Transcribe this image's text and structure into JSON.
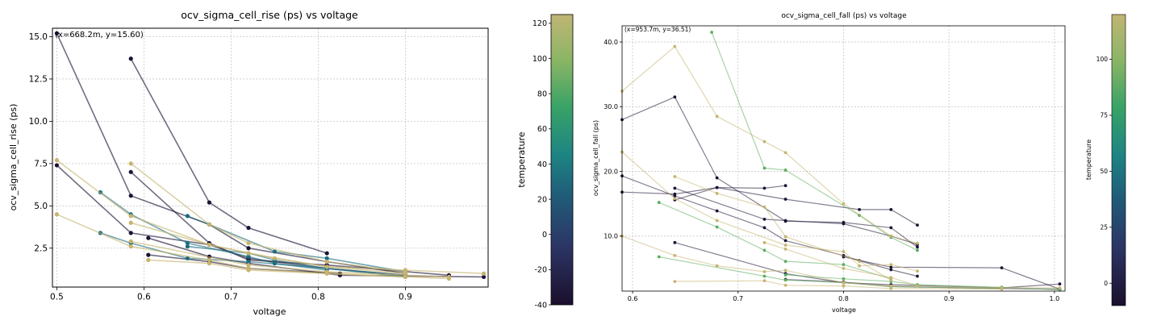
{
  "chart_data": [
    {
      "type": "line",
      "title": "ocv_sigma_cell_rise (ps) vs voltage",
      "xlabel": "voltage",
      "ylabel": "ocv_sigma_cell_rise (ps)",
      "xlim": [
        0.495,
        0.995
      ],
      "ylim": [
        0.2,
        15.5
      ],
      "x_ticks": [
        0.5,
        0.6,
        0.7,
        0.8,
        0.9
      ],
      "x_tick_labels": [
        "0.5",
        "0.6",
        "0.7",
        "0.8",
        "0.9"
      ],
      "y_ticks": [
        2.5,
        5.0,
        7.5,
        10.0,
        12.5,
        15.0
      ],
      "y_tick_labels": [
        "2.5",
        "5.0",
        "7.5",
        "10.0",
        "12.5",
        "15.0"
      ],
      "grid": true,
      "annotation": "(x=668.2m, y=15.60)",
      "colorbar": {
        "label": "temperature",
        "range": [
          -40,
          125
        ],
        "ticks": [
          -40,
          -20,
          0,
          20,
          40,
          60,
          80,
          100,
          120
        ],
        "tick_labels": [
          "-40",
          "-20",
          "0",
          "20",
          "40",
          "60",
          "80",
          "100",
          "120"
        ]
      },
      "series": [
        {
          "temperature": -40,
          "x": [
            0.5,
            0.585,
            0.675,
            0.72,
            0.81,
            0.9
          ],
          "y": [
            15.2,
            5.6,
            3.9,
            2.5,
            1.7,
            1.0
          ]
        },
        {
          "temperature": -40,
          "x": [
            0.585,
            0.675,
            0.72,
            0.81
          ],
          "y": [
            13.7,
            5.2,
            3.7,
            2.2
          ]
        },
        {
          "temperature": -40,
          "x": [
            0.5,
            0.585,
            0.675,
            0.72,
            0.81,
            0.9
          ],
          "y": [
            7.4,
            3.4,
            2.7,
            1.9,
            1.3,
            0.9
          ]
        },
        {
          "temperature": -40,
          "x": [
            0.585,
            0.675,
            0.72,
            0.81,
            0.95
          ],
          "y": [
            7.0,
            2.8,
            1.8,
            1.5,
            0.9
          ]
        },
        {
          "temperature": -40,
          "x": [
            0.605,
            0.675,
            0.72,
            0.825,
            0.99
          ],
          "y": [
            3.1,
            2.0,
            1.6,
            0.9,
            0.8
          ]
        },
        {
          "temperature": -40,
          "x": [
            0.605,
            0.675,
            0.72,
            0.825
          ],
          "y": [
            2.1,
            1.7,
            1.3,
            1.0
          ]
        },
        {
          "temperature": 25,
          "x": [
            0.55,
            0.585,
            0.65,
            0.72,
            0.75,
            0.81
          ],
          "y": [
            5.8,
            4.5,
            2.8,
            2.0,
            1.6,
            1.2
          ]
        },
        {
          "temperature": 25,
          "x": [
            0.55,
            0.585,
            0.65,
            0.72,
            0.81,
            0.9
          ],
          "y": [
            3.4,
            2.8,
            1.9,
            1.7,
            1.3,
            0.9
          ]
        },
        {
          "temperature": 25,
          "x": [
            0.65,
            0.675,
            0.75,
            0.81,
            0.9
          ],
          "y": [
            4.4,
            3.9,
            2.3,
            1.9,
            1.1
          ]
        },
        {
          "temperature": 25,
          "x": [
            0.65,
            0.72,
            0.75,
            0.81,
            0.9
          ],
          "y": [
            2.6,
            2.2,
            1.8,
            1.3,
            0.8
          ]
        },
        {
          "temperature": 125,
          "x": [
            0.5,
            0.585,
            0.675,
            0.72,
            0.81,
            0.9,
            0.99
          ],
          "y": [
            7.7,
            4.4,
            2.7,
            2.2,
            1.4,
            1.2,
            1.0
          ]
        },
        {
          "temperature": 125,
          "x": [
            0.585,
            0.675,
            0.72,
            0.81,
            0.9
          ],
          "y": [
            7.5,
            3.9,
            2.8,
            1.7,
            1.1
          ]
        },
        {
          "temperature": 125,
          "x": [
            0.5,
            0.585,
            0.675,
            0.72,
            0.81,
            0.95
          ],
          "y": [
            4.5,
            2.6,
            1.8,
            1.3,
            1.0,
            0.7
          ]
        },
        {
          "temperature": 125,
          "x": [
            0.585,
            0.675,
            0.75,
            0.81,
            0.9
          ],
          "y": [
            4.0,
            2.7,
            1.9,
            1.4,
            1.0
          ]
        },
        {
          "temperature": 125,
          "x": [
            0.605,
            0.675,
            0.72,
            0.81,
            0.9
          ],
          "y": [
            1.8,
            1.6,
            1.2,
            1.0,
            0.8
          ]
        },
        {
          "temperature": 125,
          "x": [
            0.585,
            0.72,
            0.81,
            0.95
          ],
          "y": [
            2.9,
            1.5,
            1.1,
            0.8
          ]
        }
      ]
    },
    {
      "type": "line",
      "title": "ocv_sigma_cell_fall (ps) vs voltage",
      "xlabel": "voltage",
      "ylabel": "ocv_sigma_cell_fall (ps)",
      "xlim": [
        0.59,
        1.01
      ],
      "ylim": [
        1.5,
        42.5
      ],
      "x_ticks": [
        0.6,
        0.7,
        0.8,
        0.9,
        1.0
      ],
      "x_tick_labels": [
        "0.6",
        "0.7",
        "0.8",
        "0.9",
        "1.0"
      ],
      "y_ticks": [
        10,
        20,
        30,
        40
      ],
      "y_tick_labels": [
        "10.0",
        "20.0",
        "30.0",
        "40.0"
      ],
      "grid": true,
      "annotation": "(x=953.7m, y=36.51)",
      "colorbar": {
        "label": "temperature",
        "range": [
          -10,
          120
        ],
        "ticks": [
          0,
          25,
          50,
          75,
          100
        ],
        "tick_labels": [
          "0",
          "25",
          "50",
          "75",
          "100"
        ]
      },
      "series": [
        {
          "temperature": -10,
          "x": [
            0.59,
            0.64,
            0.68,
            0.745,
            0.8,
            0.845,
            0.87
          ],
          "y": [
            28.0,
            31.5,
            19.0,
            12.3,
            12.1,
            11.3,
            8.3
          ]
        },
        {
          "temperature": -10,
          "x": [
            0.59,
            0.64,
            0.68,
            0.725,
            0.745,
            0.8,
            0.815,
            0.845,
            0.87
          ],
          "y": [
            19.3,
            16.2,
            13.9,
            11.3,
            9.3,
            7.0,
            6.2,
            4.8,
            3.8
          ]
        },
        {
          "temperature": -10,
          "x": [
            0.59,
            0.64,
            0.68,
            0.745,
            0.815,
            0.845,
            0.87
          ],
          "y": [
            16.8,
            16.5,
            17.5,
            15.7,
            14.1,
            14.1,
            11.7
          ]
        },
        {
          "temperature": -10,
          "x": [
            0.64,
            0.725,
            0.745,
            0.8,
            0.845,
            0.87
          ],
          "y": [
            17.4,
            12.6,
            12.4,
            11.9,
            10.0,
            8.7
          ]
        },
        {
          "temperature": -10,
          "x": [
            0.64,
            0.68,
            0.725,
            0.745
          ],
          "y": [
            15.6,
            17.5,
            17.4,
            17.8
          ]
        },
        {
          "temperature": -10,
          "x": [
            0.64,
            0.745,
            0.8,
            0.845,
            0.95,
            1.005
          ],
          "y": [
            9.0,
            4.2,
            2.8,
            2.5,
            2.0,
            2.6
          ]
        },
        {
          "temperature": -10,
          "x": [
            0.745,
            0.8,
            0.845,
            0.95,
            1.005
          ],
          "y": [
            3.3,
            2.9,
            2.2,
            1.9,
            1.8
          ]
        },
        {
          "temperature": -10,
          "x": [
            0.8,
            0.845,
            0.95,
            1.005
          ],
          "y": [
            6.8,
            5.2,
            5.1,
            1.8
          ]
        },
        {
          "temperature": 85,
          "x": [
            0.625,
            0.68,
            0.725,
            0.745,
            0.8,
            0.845
          ],
          "y": [
            15.2,
            11.4,
            7.8,
            6.1,
            5.6,
            3.4
          ]
        },
        {
          "temperature": 85,
          "x": [
            0.625,
            0.725,
            0.745,
            0.8,
            0.845,
            0.95
          ],
          "y": [
            6.8,
            3.8,
            3.2,
            2.8,
            2.2,
            1.9
          ]
        },
        {
          "temperature": 85,
          "x": [
            0.675,
            0.725,
            0.745,
            0.815,
            0.845,
            0.87
          ],
          "y": [
            41.5,
            20.5,
            20.2,
            13.2,
            9.8,
            7.8
          ]
        },
        {
          "temperature": 85,
          "x": [
            0.745,
            0.8,
            0.845,
            0.87,
            0.95,
            1.005
          ],
          "y": [
            4.0,
            3.4,
            3.0,
            2.5,
            2.1,
            1.7
          ]
        },
        {
          "temperature": 125,
          "x": [
            0.59,
            0.64,
            0.68,
            0.725,
            0.745,
            0.8,
            0.845,
            0.87
          ],
          "y": [
            32.4,
            39.3,
            28.5,
            24.6,
            22.9,
            15.0,
            10.0,
            8.9
          ]
        },
        {
          "temperature": 125,
          "x": [
            0.59,
            0.64,
            0.68,
            0.745,
            0.8,
            0.815,
            0.845,
            0.87
          ],
          "y": [
            23.0,
            15.8,
            12.4,
            8.6,
            7.6,
            5.4,
            5.6,
            4.6
          ]
        },
        {
          "temperature": 125,
          "x": [
            0.64,
            0.68,
            0.725,
            0.745,
            0.815,
            0.845
          ],
          "y": [
            19.2,
            16.6,
            14.5,
            9.9,
            6.1,
            3.2
          ]
        },
        {
          "temperature": 125,
          "x": [
            0.59,
            0.64,
            0.68,
            0.725,
            0.745,
            0.8,
            0.845,
            0.95,
            1.005
          ],
          "y": [
            10.0,
            7.0,
            5.4,
            4.5,
            4.7,
            2.8,
            2.3,
            2.0,
            2.0
          ]
        },
        {
          "temperature": 125,
          "x": [
            0.64,
            0.725,
            0.745,
            0.8,
            0.845,
            0.95
          ],
          "y": [
            3.0,
            3.1,
            2.4,
            2.3,
            1.9,
            1.8
          ]
        },
        {
          "temperature": 125,
          "x": [
            0.725,
            0.745,
            0.8,
            0.845,
            0.87
          ],
          "y": [
            9.0,
            8.0,
            5.0,
            3.6,
            2.3
          ]
        }
      ]
    }
  ]
}
